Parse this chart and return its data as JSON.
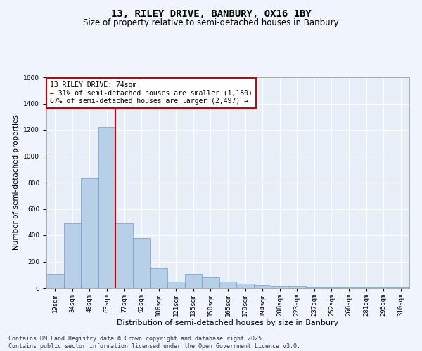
{
  "title": "13, RILEY DRIVE, BANBURY, OX16 1BY",
  "subtitle": "Size of property relative to semi-detached houses in Banbury",
  "xlabel": "Distribution of semi-detached houses by size in Banbury",
  "ylabel": "Number of semi-detached properties",
  "bin_labels": [
    "19sqm",
    "34sqm",
    "48sqm",
    "63sqm",
    "77sqm",
    "92sqm",
    "106sqm",
    "121sqm",
    "135sqm",
    "150sqm",
    "165sqm",
    "179sqm",
    "194sqm",
    "208sqm",
    "223sqm",
    "237sqm",
    "252sqm",
    "266sqm",
    "281sqm",
    "295sqm",
    "310sqm"
  ],
  "bar_values": [
    100,
    490,
    830,
    1220,
    490,
    380,
    150,
    50,
    100,
    80,
    50,
    30,
    20,
    10,
    10,
    5,
    5,
    5,
    5,
    5,
    5
  ],
  "bar_color": "#b8cfe8",
  "bar_edge_color": "#6a9fd4",
  "vline_x": 3.5,
  "annotation_title": "13 RILEY DRIVE: 74sqm",
  "annotation_line1": "← 31% of semi-detached houses are smaller (1,180)",
  "annotation_line2": "67% of semi-detached houses are larger (2,497) →",
  "annotation_box_color": "#ffffff",
  "annotation_box_edge": "#cc0000",
  "vline_color": "#cc0000",
  "ylim": [
    0,
    1600
  ],
  "yticks": [
    0,
    200,
    400,
    600,
    800,
    1000,
    1200,
    1400,
    1600
  ],
  "footer_line1": "Contains HM Land Registry data © Crown copyright and database right 2025.",
  "footer_line2": "Contains public sector information licensed under the Open Government Licence v3.0.",
  "bg_color": "#e8eef8",
  "grid_color": "#ffffff",
  "fig_bg_color": "#f0f4fc",
  "title_fontsize": 10,
  "subtitle_fontsize": 8.5,
  "ylabel_fontsize": 7.5,
  "xlabel_fontsize": 8,
  "tick_fontsize": 6.5,
  "annotation_fontsize": 7,
  "footer_fontsize": 6
}
